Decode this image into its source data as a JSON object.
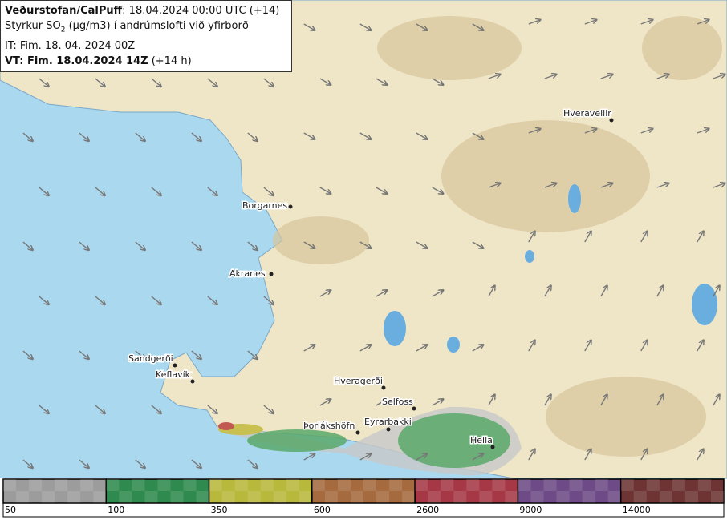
{
  "header": {
    "line1": {
      "bold": "Veðurstofan/CalPuff",
      "text": ": 18.04.2024 00:00 UTC (+14)"
    },
    "line2": {
      "text": "Styrkur SO",
      "sub": "2",
      "rest": " (µg/m3) í andrúmslofti við yfirborð"
    },
    "line3": {
      "text": "IT: Fim. 18. 04. 2024 00Z"
    },
    "line4": {
      "bold": "VT: Fim. 18.04.2024 14Z",
      "text": " (+14 h)"
    }
  },
  "places": [
    "Hveravellir",
    "Borgarnes",
    "Akranes",
    "Sandgerði",
    "Keflavík",
    "Hveragerði",
    "Selfoss",
    "Þorlákshöfn",
    "Eyrarbakki",
    "Hella"
  ],
  "legend": [
    {
      "label": 50,
      "color": "#9c9c9c"
    },
    {
      "label": 100,
      "color": "#2e8a4e"
    },
    {
      "label": 350,
      "color": "#b8b83c"
    },
    {
      "label": 600,
      "color": "#a56a3e"
    },
    {
      "label": 2600,
      "color": "#a63846"
    },
    {
      "label": 9000,
      "color": "#6e4a86"
    },
    {
      "label": 14000,
      "color": "#6e3434"
    }
  ]
}
